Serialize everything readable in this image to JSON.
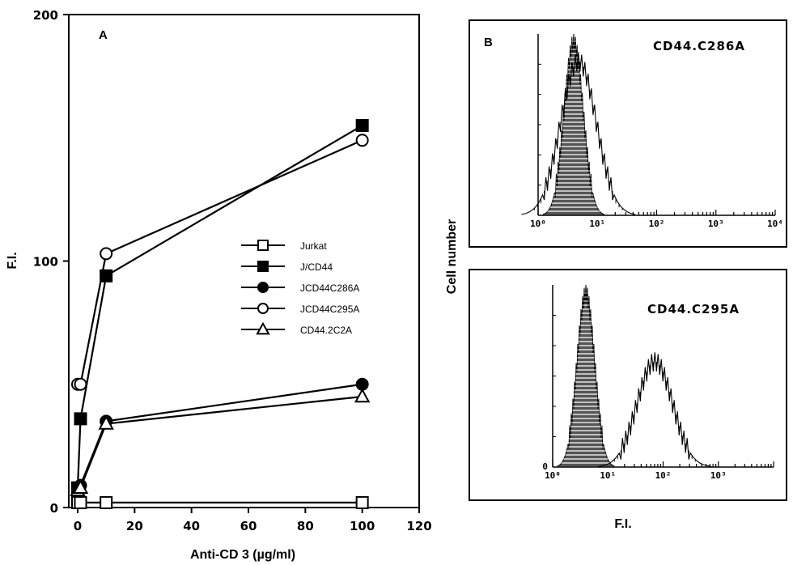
{
  "chart_data": [
    {
      "type": "line",
      "panel_label": "A",
      "xlabel": "Anti-CD 3 (µg/ml)",
      "ylabel": "F.I.",
      "xlim": [
        0,
        120
      ],
      "ylim": [
        0,
        200
      ],
      "x_ticks": [
        0,
        20,
        40,
        60,
        80,
        100,
        120
      ],
      "y_ticks": [
        0,
        100,
        200
      ],
      "legend_position": "center-right",
      "series": [
        {
          "name": "Jurkat",
          "marker": "open-square",
          "x": [
            0,
            1,
            10,
            100
          ],
          "y": [
            2,
            2,
            2,
            2
          ]
        },
        {
          "name": "J/CD44",
          "marker": "filled-square",
          "x": [
            0,
            1,
            10,
            100
          ],
          "y": [
            8,
            36,
            94,
            155
          ]
        },
        {
          "name": "JCD44C286A",
          "marker": "filled-circle",
          "x": [
            0,
            1,
            10,
            100
          ],
          "y": [
            8,
            9,
            35,
            50
          ]
        },
        {
          "name": "JCD44C295A",
          "marker": "open-circle",
          "x": [
            0,
            1,
            10,
            100
          ],
          "y": [
            50,
            50,
            103,
            149
          ]
        },
        {
          "name": "CD44.2C2A",
          "marker": "open-triangle",
          "x": [
            0,
            1,
            10,
            100
          ],
          "y": [
            7,
            8,
            34,
            45
          ]
        }
      ]
    },
    {
      "type": "area",
      "panel_label": "B",
      "title": "CD44.C286A",
      "x_scale": "log",
      "x_tick_labels": [
        "10⁰",
        "10¹",
        "10²",
        "10³",
        "10⁴"
      ],
      "peaks": [
        {
          "fill": "hatched",
          "center_log": 0.6,
          "width_log": 0.16
        },
        {
          "fill": "open",
          "center_log": 0.68,
          "width_log": 0.3
        }
      ]
    },
    {
      "type": "area",
      "title": "CD44.C295A",
      "x_scale": "log",
      "x_tick_labels": [
        "10⁰",
        "10¹",
        "10²",
        "10³"
      ],
      "y_tick_labels": [
        "0"
      ],
      "peaks": [
        {
          "fill": "hatched",
          "center_log": 0.6,
          "width_log": 0.16
        },
        {
          "fill": "open",
          "center_log": 1.85,
          "width_log": 0.32
        }
      ]
    }
  ],
  "panel_b_ylabel": "Cell number",
  "panel_b_xlabel": "F.I."
}
